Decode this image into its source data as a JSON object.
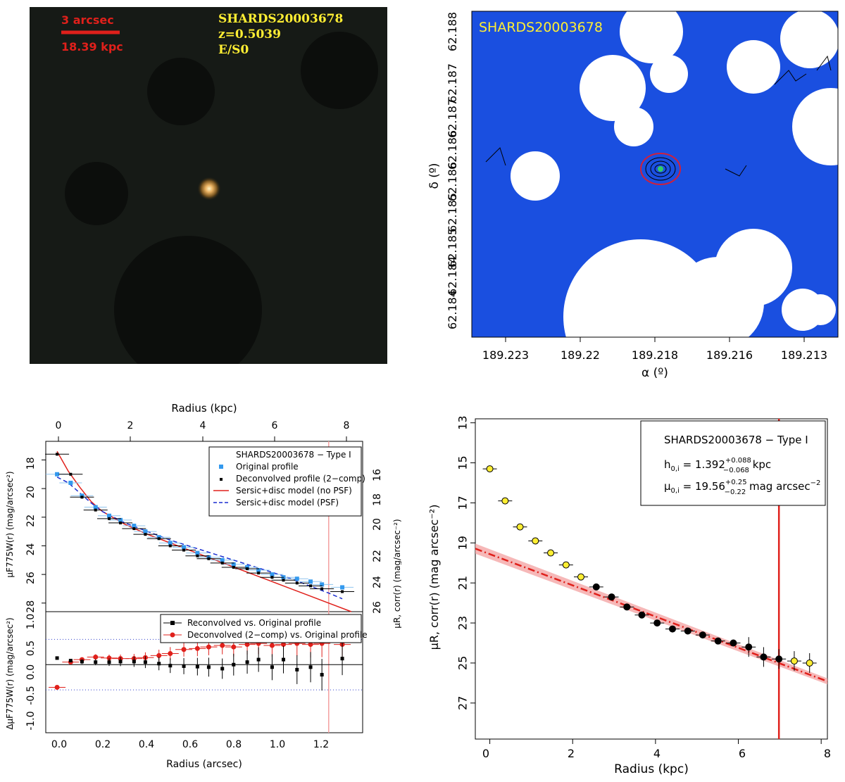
{
  "image_panel": {
    "scale_label": "3 arcsec",
    "scale_kpc": "18.39 kpc",
    "name": "SHARDS20003678",
    "redshift": "z=0.5039",
    "morph": "E/S0"
  },
  "map_panel": {
    "name": "SHARDS20003678",
    "xlabel": "α (º)",
    "ylabel": "δ (º)",
    "xticks": [
      "189.223",
      "189.22",
      "189.218",
      "189.216",
      "189.213"
    ],
    "yticks": [
      "62.188",
      "62.187",
      "62.187",
      "62.186",
      "62.186",
      "62.185",
      "62.185",
      "62.184",
      "62.184"
    ]
  },
  "colors": {
    "blue": "#3399ee",
    "red": "#e0201b",
    "yellow": "#ffee33",
    "sky": "#1a4fe0"
  },
  "chart_data": [
    {
      "type": "scatter",
      "title": "SHARDS20003678 − Type I",
      "xlabel": "Radius (arcsec)",
      "xlabel_top": "Radius (kpc)",
      "ylabel": "μF775W(r) (mag/arcsec²)",
      "ylabel_right": "μR, corr(r) (mag/arcsec⁻²)",
      "xlim": [
        -0.05,
        1.35
      ],
      "ylim": [
        28.6,
        16.7
      ],
      "xticks": [
        "0.0",
        "0.2",
        "0.4",
        "0.6",
        "0.8",
        "1.0",
        "1.2"
      ],
      "xticks_top": [
        "0",
        "2",
        "4",
        "6",
        "8"
      ],
      "yticks": [
        "18",
        "20",
        "22",
        "24",
        "26",
        "28"
      ],
      "yticks_right": [
        "16",
        "18",
        "20",
        "22",
        "24",
        "26"
      ],
      "legend": [
        "SHARDS20003678 − Type I",
        "Original profile",
        "Deconvolved profile (2−comp)",
        "Sersic+disc model (no PSF)",
        "Sersic+disc model (PSF)"
      ],
      "vline_x": 1.2,
      "series": [
        {
          "name": "Original profile",
          "x": [
            0.0,
            0.06,
            0.11,
            0.17,
            0.23,
            0.28,
            0.34,
            0.39,
            0.45,
            0.5,
            0.56,
            0.62,
            0.67,
            0.73,
            0.78,
            0.84,
            0.89,
            0.95,
            1.0,
            1.06,
            1.12,
            1.17,
            1.26
          ],
          "y": [
            19.0,
            19.6,
            20.5,
            21.3,
            21.9,
            22.2,
            22.6,
            23.0,
            23.4,
            23.8,
            24.1,
            24.5,
            24.8,
            25.0,
            25.3,
            25.5,
            25.7,
            26.0,
            26.2,
            26.3,
            26.5,
            26.7,
            26.9
          ]
        },
        {
          "name": "Deconvolved profile (2−comp)",
          "x": [
            0.0,
            0.06,
            0.11,
            0.17,
            0.23,
            0.28,
            0.34,
            0.39,
            0.45,
            0.5,
            0.56,
            0.62,
            0.67,
            0.73,
            0.78,
            0.84,
            0.89,
            0.95,
            1.0,
            1.06,
            1.12,
            1.17,
            1.26
          ],
          "y": [
            17.6,
            19.0,
            20.6,
            21.5,
            22.1,
            22.4,
            22.8,
            23.2,
            23.5,
            24.0,
            24.3,
            24.7,
            24.9,
            25.2,
            25.5,
            25.6,
            25.9,
            26.2,
            26.4,
            26.6,
            26.8,
            27.0,
            27.2
          ]
        },
        {
          "name": "Sersic+disc model (no PSF)",
          "x": [
            0.0,
            0.05,
            0.1,
            0.15,
            0.2,
            0.3,
            0.4,
            0.5,
            0.6,
            0.7,
            0.8,
            0.9,
            1.0,
            1.1,
            1.2,
            1.3
          ],
          "y": [
            17.4,
            18.8,
            19.9,
            20.9,
            21.6,
            22.5,
            23.2,
            23.8,
            24.4,
            25.0,
            25.6,
            26.2,
            26.8,
            27.4,
            28.0,
            28.6
          ]
        },
        {
          "name": "Sersic+disc model (PSF)",
          "x": [
            0.0,
            0.05,
            0.1,
            0.15,
            0.2,
            0.3,
            0.4,
            0.5,
            0.6,
            0.7,
            0.8,
            0.9,
            1.0,
            1.1,
            1.2,
            1.26
          ],
          "y": [
            19.2,
            19.6,
            20.3,
            21.0,
            21.6,
            22.4,
            23.0,
            23.6,
            24.1,
            24.6,
            25.1,
            25.6,
            26.1,
            26.7,
            27.3,
            27.7
          ]
        }
      ]
    },
    {
      "type": "scatter",
      "xlabel": "Radius (arcsec)",
      "ylabel": "ΔμF775W(r) (mag/arcsec²)",
      "xlim": [
        -0.05,
        1.35
      ],
      "ylim": [
        -1.35,
        1.05
      ],
      "yticks": [
        "1.0",
        "0.5",
        "0.0",
        "-0.5",
        "-1.0"
      ],
      "hlines": [
        0.5,
        0.0,
        -0.5
      ],
      "vline_x": 1.2,
      "legend": [
        "Reconvolved vs. Original profile",
        "Deconvolved (2−comp) vs. Original profile"
      ],
      "series": [
        {
          "name": "Reconvolved vs. Original profile",
          "x": [
            0.0,
            0.06,
            0.11,
            0.17,
            0.23,
            0.28,
            0.34,
            0.39,
            0.45,
            0.5,
            0.56,
            0.62,
            0.67,
            0.73,
            0.78,
            0.84,
            0.89,
            0.95,
            1.0,
            1.06,
            1.12,
            1.17,
            1.26
          ],
          "y": [
            0.13,
            0.08,
            0.06,
            0.05,
            0.05,
            0.06,
            0.06,
            0.05,
            0.02,
            -0.02,
            -0.03,
            -0.04,
            -0.05,
            -0.08,
            0.0,
            0.05,
            0.1,
            -0.05,
            0.1,
            -0.1,
            -0.05,
            -0.2,
            0.12
          ]
        },
        {
          "name": "Deconvolved (2−comp) vs. Original profile",
          "x": [
            0.0,
            0.06,
            0.11,
            0.17,
            0.23,
            0.28,
            0.34,
            0.39,
            0.45,
            0.5,
            0.56,
            0.62,
            0.67,
            0.73,
            0.78,
            0.84,
            0.89,
            0.95,
            1.0,
            1.06,
            1.12,
            1.17,
            1.26
          ],
          "y": [
            -0.45,
            0.05,
            0.1,
            0.15,
            0.13,
            0.12,
            0.12,
            0.14,
            0.18,
            0.22,
            0.3,
            0.32,
            0.35,
            0.38,
            0.35,
            0.4,
            0.42,
            0.38,
            0.4,
            0.42,
            0.4,
            0.42,
            0.4
          ]
        }
      ]
    },
    {
      "type": "scatter",
      "xlabel": "Radius (kpc)",
      "ylabel": "μR, corr(r) (mag arcsec⁻²)",
      "xlim": [
        -0.35,
        8.15
      ],
      "ylim": [
        28.8,
        12.8
      ],
      "xticks": [
        "0",
        "2",
        "4",
        "6",
        "8"
      ],
      "yticks": [
        "13",
        "15",
        "17",
        "19",
        "21",
        "23",
        "25",
        "27"
      ],
      "legend": [
        "SHARDS20003678  − Type I",
        "h0,i = 1.392+0.088−0.068 kpc",
        "μ0,i = 19.56+0.25−0.22 mag arcsec⁻²"
      ],
      "legend_texts": {
        "title": "SHARDS20003678  − Type I",
        "h": "h",
        "h_sub": "0,i",
        "h_eq": " = 1.392",
        "h_up": "+0.088",
        "h_dn": "−0.068",
        "h_unit": " kpc",
        "mu": "μ",
        "mu_sub": "0,i",
        "mu_eq": " = 19.56",
        "mu_up": "+0.25",
        "mu_dn": "−0.22",
        "mu_unit": " mag arcsec",
        "mu_exp": "−2"
      },
      "vline_x": 6.98,
      "fit": {
        "intercept": 19.56,
        "scale_length_kpc": 1.392
      },
      "series": [
        {
          "name": "excluded (yellow)",
          "x": [
            0.0,
            0.37,
            0.73,
            1.1,
            1.47,
            1.84,
            2.2,
            7.35,
            7.72
          ],
          "y": [
            15.3,
            16.9,
            18.2,
            18.9,
            19.5,
            20.1,
            20.7,
            24.9,
            25.0
          ]
        },
        {
          "name": "fitted (black)",
          "x": [
            2.57,
            2.94,
            3.31,
            3.67,
            4.04,
            4.41,
            4.78,
            5.14,
            5.51,
            5.88,
            6.25,
            6.61,
            6.98
          ],
          "y": [
            21.2,
            21.7,
            22.2,
            22.6,
            23.0,
            23.3,
            23.4,
            23.6,
            23.9,
            24.0,
            24.2,
            24.7,
            24.8
          ]
        }
      ]
    }
  ]
}
